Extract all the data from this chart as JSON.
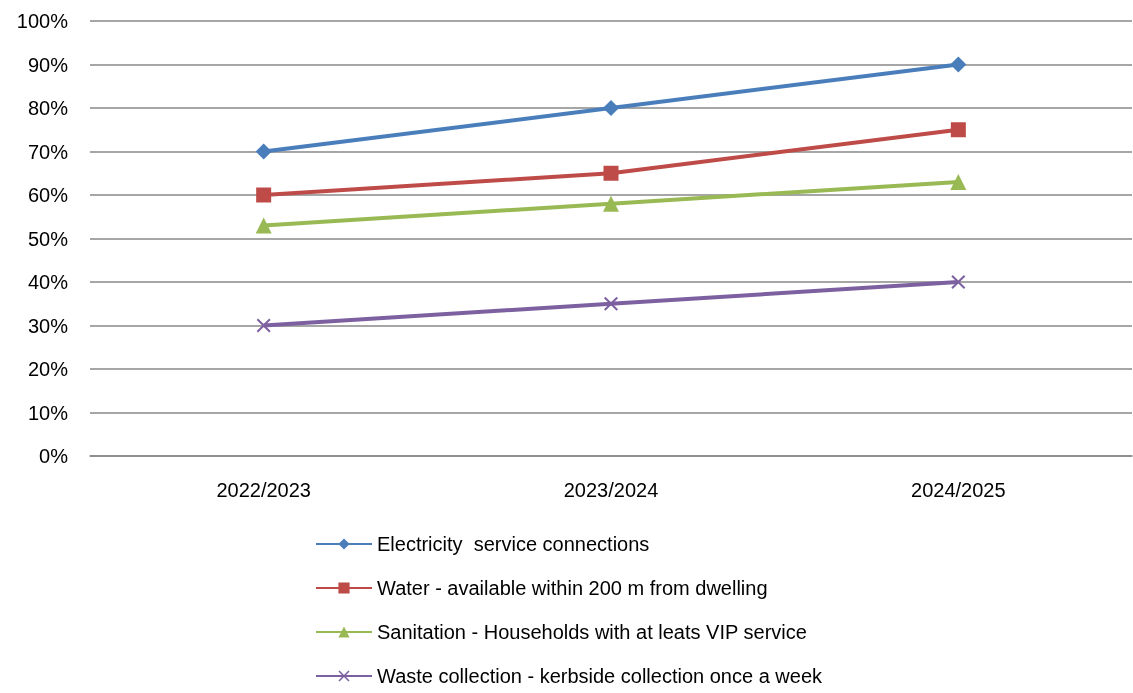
{
  "chart_data": {
    "type": "line",
    "categories": [
      "2022/2023",
      "2023/2024",
      "2024/2025"
    ],
    "series": [
      {
        "name": "Electricity  service connections",
        "color": "#4a7ebb",
        "marker": "diamond",
        "values": [
          70,
          80,
          90
        ]
      },
      {
        "name": "Water - available within 200 m from dwelling",
        "color": "#be4b48",
        "marker": "square",
        "values": [
          60,
          65,
          75
        ]
      },
      {
        "name": "Sanitation - Households with at leats VIP service",
        "color": "#98b954",
        "marker": "triangle",
        "values": [
          53,
          58,
          63
        ]
      },
      {
        "name": "Waste collection - kerbside collection once a week",
        "color": "#7d60a0",
        "marker": "cross",
        "values": [
          30,
          35,
          40
        ]
      }
    ],
    "ylim": [
      0,
      100
    ],
    "yticks": [
      {
        "value": 0,
        "label": "0%"
      },
      {
        "value": 10,
        "label": "10%"
      },
      {
        "value": 20,
        "label": "20%"
      },
      {
        "value": 30,
        "label": "30%"
      },
      {
        "value": 40,
        "label": "40%"
      },
      {
        "value": 50,
        "label": "50%"
      },
      {
        "value": 60,
        "label": "60%"
      },
      {
        "value": 70,
        "label": "70%"
      },
      {
        "value": 80,
        "label": "80%"
      },
      {
        "value": 90,
        "label": "90%"
      },
      {
        "value": 100,
        "label": "100%"
      }
    ],
    "grid": "y",
    "legend": "bottom",
    "line_style": "solid"
  }
}
